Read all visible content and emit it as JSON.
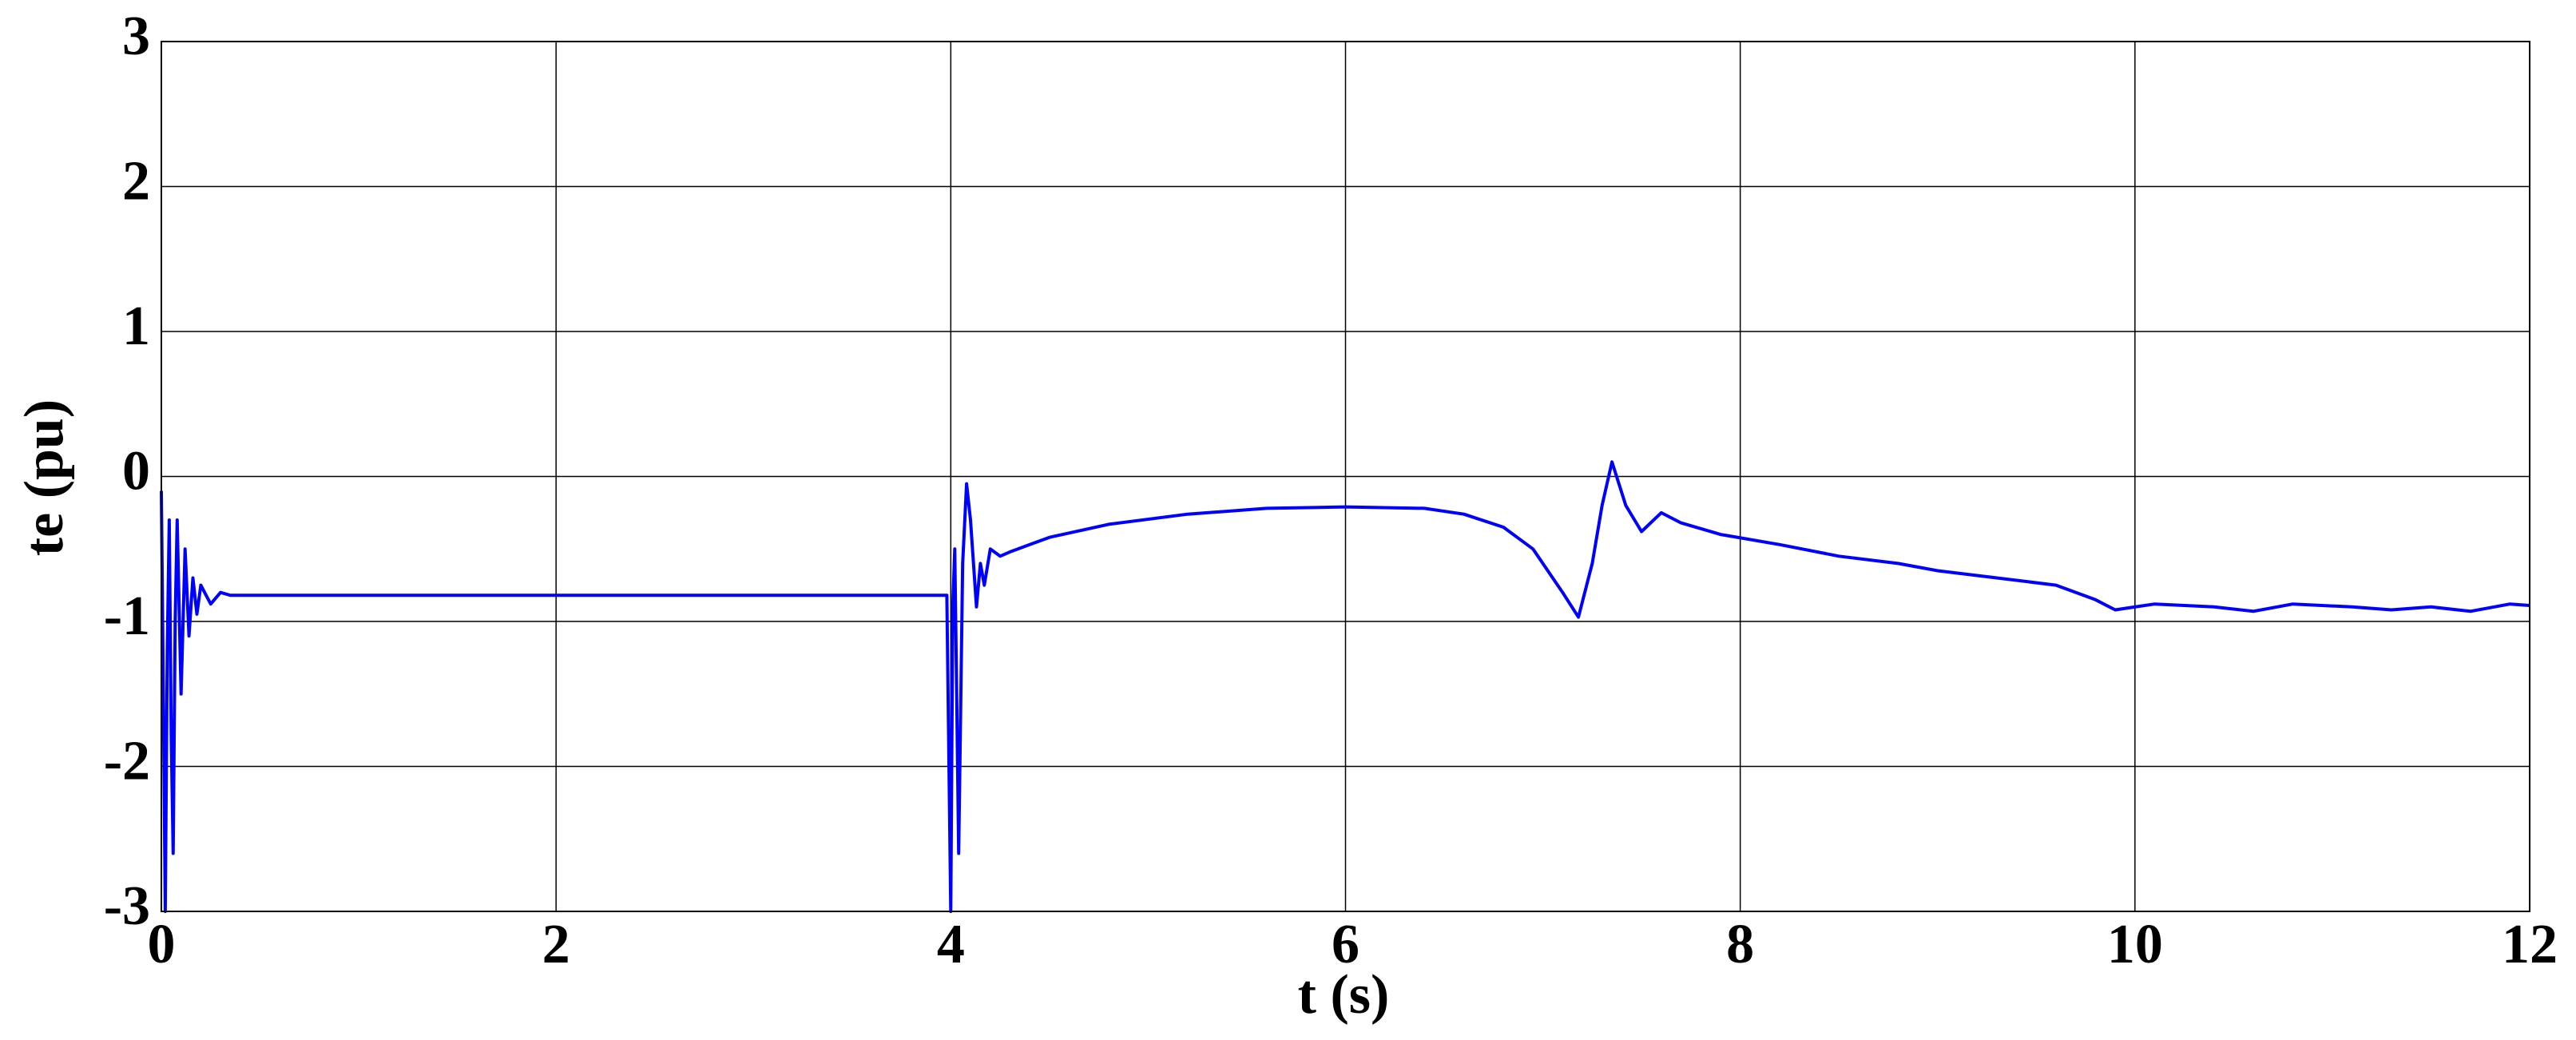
{
  "chart_data": {
    "type": "line",
    "x_label": "t (s)",
    "y_label": "te (pu)",
    "xlim": [
      0,
      12
    ],
    "ylim": [
      -3,
      3
    ],
    "xticks": [
      0,
      2,
      4,
      6,
      8,
      10,
      12
    ],
    "yticks": [
      -3,
      -2,
      -1,
      0,
      1,
      2,
      3
    ],
    "grid": true,
    "x": [
      0,
      0.01,
      0.02,
      0.03,
      0.04,
      0.05,
      0.06,
      0.07,
      0.08,
      0.1,
      0.12,
      0.14,
      0.16,
      0.18,
      0.2,
      0.25,
      0.3,
      0.35,
      1,
      2,
      3,
      3.98,
      4.0,
      4.01,
      4.02,
      4.03,
      4.04,
      4.06,
      4.08,
      4.1,
      4.13,
      4.15,
      4.17,
      4.2,
      4.25,
      4.3,
      4.4,
      4.5,
      4.8,
      5.2,
      5.6,
      6.0,
      6.4,
      6.6,
      6.8,
      6.95,
      7.1,
      7.18,
      7.25,
      7.3,
      7.35,
      7.42,
      7.5,
      7.6,
      7.7,
      7.9,
      8.2,
      8.5,
      8.8,
      9.0,
      9.3,
      9.6,
      9.8,
      9.9,
      10.1,
      10.4,
      10.6,
      10.8,
      11.1,
      11.3,
      11.5,
      11.7,
      11.9,
      12
    ],
    "series": [
      {
        "name": "te",
        "color": "#0000ff",
        "values": [
          -0.1,
          -1.5,
          -3,
          -1.2,
          -0.3,
          -1.8,
          -2.6,
          -1.0,
          -0.3,
          -1.5,
          -0.5,
          -1.1,
          -0.7,
          -0.95,
          -0.75,
          -0.88,
          -0.8,
          -0.82,
          -0.82,
          -0.82,
          -0.82,
          -0.82,
          -3,
          -0.9,
          -0.5,
          -1.5,
          -2.6,
          -0.6,
          -0.05,
          -0.3,
          -0.9,
          -0.6,
          -0.75,
          -0.5,
          -0.55,
          -0.52,
          -0.47,
          -0.42,
          -0.33,
          -0.26,
          -0.22,
          -0.21,
          -0.22,
          -0.26,
          -0.35,
          -0.5,
          -0.8,
          -0.97,
          -0.6,
          -0.2,
          0.1,
          -0.2,
          -0.38,
          -0.25,
          -0.32,
          -0.4,
          -0.47,
          -0.55,
          -0.6,
          -0.65,
          -0.7,
          -0.75,
          -0.85,
          -0.92,
          -0.88,
          -0.9,
          -0.93,
          -0.88,
          -0.9,
          -0.92,
          -0.9,
          -0.93,
          -0.88,
          -0.89
        ]
      }
    ]
  }
}
